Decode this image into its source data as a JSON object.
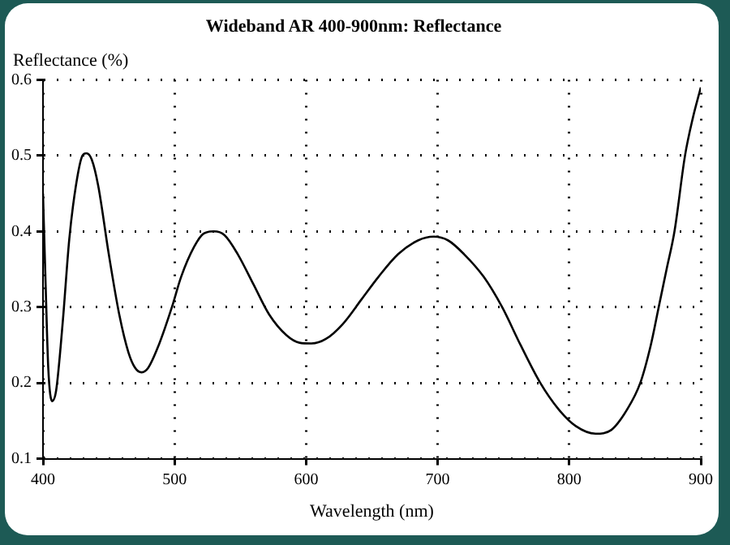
{
  "chart_data": {
    "type": "line",
    "title": "Wideband AR 400-900nm: Reflectance",
    "xlabel": "Wavelength (nm)",
    "ylabel": "Reflectance (%)",
    "x": [
      400,
      402,
      404,
      407,
      410,
      415,
      420,
      425,
      430,
      433,
      437,
      442,
      450,
      458,
      465,
      470,
      475,
      480,
      488,
      498,
      505,
      515,
      522,
      530,
      538,
      548,
      560,
      572,
      585,
      595,
      604,
      615,
      628,
      642,
      655,
      670,
      685,
      697,
      708,
      720,
      735,
      749,
      763,
      778,
      792,
      805,
      820,
      832,
      844,
      854,
      862,
      868,
      874,
      880,
      888,
      894,
      900
    ],
    "series": [
      {
        "color": "#000000",
        "values": [
          0.45,
          0.33,
          0.22,
          0.176,
          0.19,
          0.28,
          0.39,
          0.46,
          0.5,
          0.503,
          0.495,
          0.46,
          0.37,
          0.29,
          0.24,
          0.22,
          0.214,
          0.22,
          0.25,
          0.3,
          0.34,
          0.38,
          0.397,
          0.4,
          0.395,
          0.37,
          0.33,
          0.29,
          0.263,
          0.253,
          0.252,
          0.258,
          0.278,
          0.31,
          0.34,
          0.37,
          0.388,
          0.393,
          0.388,
          0.37,
          0.34,
          0.3,
          0.25,
          0.2,
          0.165,
          0.143,
          0.133,
          0.138,
          0.165,
          0.2,
          0.25,
          0.3,
          0.35,
          0.4,
          0.5,
          0.55,
          0.59
        ]
      }
    ],
    "xlim": [
      400,
      900
    ],
    "xticks": [
      400,
      500,
      600,
      700,
      800,
      900
    ],
    "ylim": [
      0.1,
      0.6
    ],
    "yticks": [
      0.1,
      0.2,
      0.3,
      0.4,
      0.5,
      0.6
    ],
    "grid": true,
    "marker": "none",
    "line_style": "solid"
  }
}
